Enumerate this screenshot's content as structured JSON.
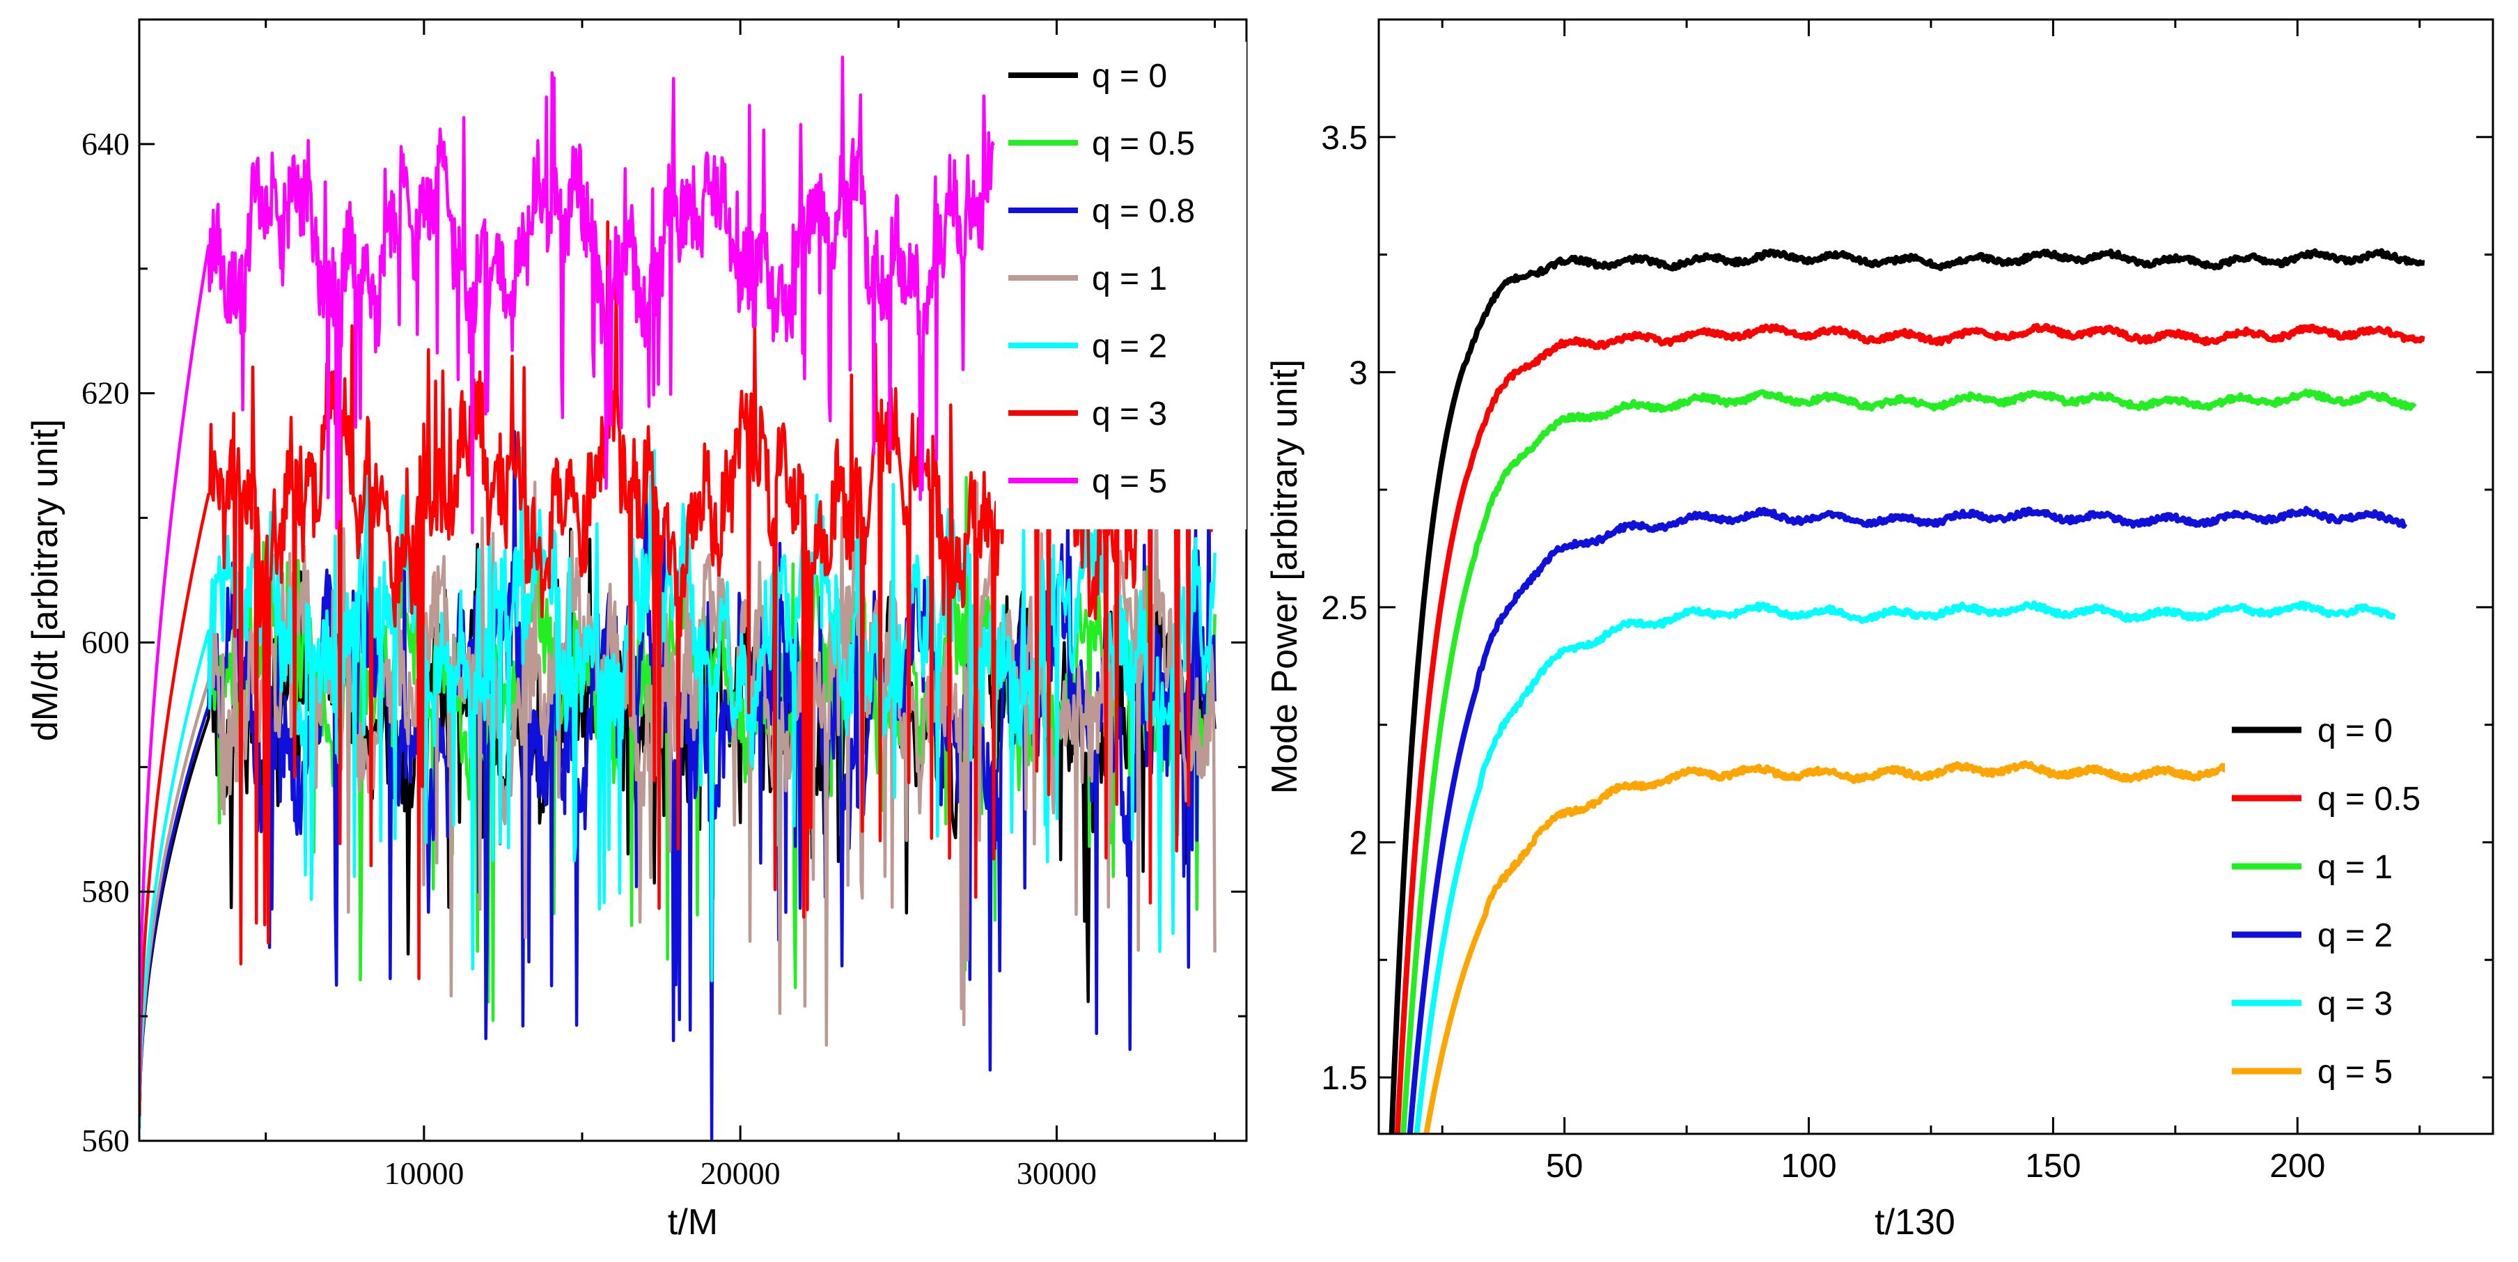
{
  "chart_data": [
    {
      "type": "line",
      "xlabel": "t/M",
      "ylabel": "dM/dt [arbitrary unit]",
      "xlim": [
        1000,
        36000
      ],
      "ylim": [
        560,
        650
      ],
      "xticks": [
        10000,
        20000,
        30000
      ],
      "xtick_labels": [
        "10000",
        "20000",
        "30000"
      ],
      "yticks": [
        560,
        580,
        600,
        620,
        640
      ],
      "ytick_labels": [
        "560",
        "580",
        "600",
        "620",
        "640"
      ],
      "legend_position": "top-right",
      "series": [
        {
          "name": "q = 0",
          "color": "#000000",
          "x_start": 1000,
          "x_end": 35000,
          "mean": 594,
          "amp": 6,
          "drop_amp": 12,
          "base": 561
        },
        {
          "name": "q = 0.5",
          "color": "#22ee22",
          "x_start": 1000,
          "x_end": 35000,
          "mean": 597,
          "amp": 6,
          "drop_amp": 22,
          "base": 561
        },
        {
          "name": "q = 0.8",
          "color": "#1010dd",
          "x_start": 1000,
          "x_end": 35000,
          "mean": 595,
          "amp": 8,
          "drop_amp": 24,
          "base": 561
        },
        {
          "name": "q = 1",
          "color": "#bc9a93",
          "x_start": 1000,
          "x_end": 35000,
          "mean": 597,
          "amp": 7,
          "drop_amp": 20,
          "base": 561
        },
        {
          "name": "q = 2",
          "color": "#00ffff",
          "x_start": 1000,
          "x_end": 35000,
          "mean": 601,
          "amp": 7,
          "drop_amp": 18,
          "base": 561
        },
        {
          "name": "q = 3",
          "color": "#ff0000",
          "x_start": 1000,
          "x_end": 35000,
          "mean": 612,
          "amp": 7,
          "drop_amp": 30,
          "base": 562
        },
        {
          "name": "q = 5",
          "color": "#ff00ff",
          "x_start": 1000,
          "x_end": 28000,
          "mean": 632,
          "amp": 6,
          "drop_amp": 14,
          "base": 564
        }
      ]
    },
    {
      "type": "line",
      "xlabel": "t/130",
      "ylabel": "Mode Power [arbitrary unit]",
      "xlim": [
        12,
        240
      ],
      "ylim": [
        1.38,
        3.75
      ],
      "xticks": [
        50,
        100,
        150,
        200
      ],
      "xtick_labels": [
        "50",
        "100",
        "150",
        "200"
      ],
      "yticks": [
        1.5,
        2,
        2.5,
        3,
        3.5
      ],
      "ytick_labels": [
        "1.5",
        "2",
        "2.5",
        "3",
        "3.5"
      ],
      "legend_position": "bottom-right",
      "series": [
        {
          "name": "q = 0",
          "color": "#000000",
          "t_start": 14,
          "x_end": 226,
          "plateau": 3.24
        },
        {
          "name": "q = 0.5",
          "color": "#ff0000",
          "t_start": 15,
          "x_end": 226,
          "plateau": 3.08
        },
        {
          "name": "q = 1",
          "color": "#22ee22",
          "t_start": 16,
          "x_end": 224,
          "plateau": 2.94
        },
        {
          "name": "q = 2",
          "color": "#1010dd",
          "t_start": 17,
          "x_end": 222,
          "plateau": 2.69
        },
        {
          "name": "q = 3",
          "color": "#00ffff",
          "t_start": 18,
          "x_end": 220,
          "plateau": 2.49
        },
        {
          "name": "q = 5",
          "color": "#ffa500",
          "t_start": 19,
          "x_end": 187,
          "plateau": 2.15
        }
      ]
    }
  ]
}
